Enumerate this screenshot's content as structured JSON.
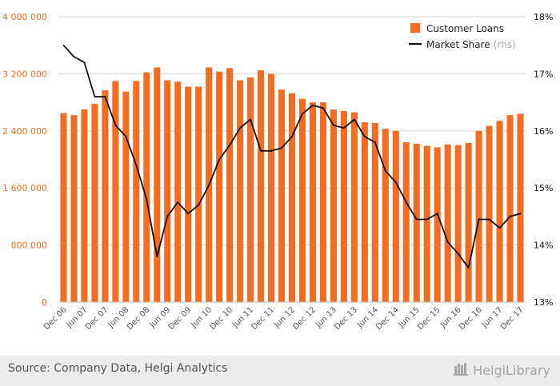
{
  "chart_data": {
    "type": "bar",
    "categories": [
      "Dec 06",
      "Mar 07",
      "Jun 07",
      "Sep 07",
      "Dec 07",
      "Mar 08",
      "Jun 08",
      "Sep 08",
      "Dec 08",
      "Mar 09",
      "Jun 09",
      "Sep 09",
      "Dec 09",
      "Mar 10",
      "Jun 10",
      "Sep 10",
      "Dec 10",
      "Mar 11",
      "Jun 11",
      "Sep 11",
      "Dec 11",
      "Mar 12",
      "Jun 12",
      "Sep 12",
      "Dec 12",
      "Mar 13",
      "Jun 13",
      "Sep 13",
      "Dec 13",
      "Mar 14",
      "Jun 14",
      "Sep 14",
      "Dec 14",
      "Mar 15",
      "Jun 15",
      "Sep 15",
      "Dec 15",
      "Mar 16",
      "Jun 16",
      "Sep 16",
      "Dec 16",
      "Mar 17",
      "Jun 17",
      "Sep 17",
      "Dec 17"
    ],
    "x_tick_labels": [
      "Dec 06",
      "Jun 07",
      "Dec 07",
      "Jun 08",
      "Dec 08",
      "Jun 09",
      "Dec 09",
      "Jun 10",
      "Dec 10",
      "Jun 11",
      "Dec 11",
      "Jun 12",
      "Dec 12",
      "Jun 13",
      "Dec 13",
      "Jun 14",
      "Dec 14",
      "Jun 15",
      "Dec 15",
      "Jun 16",
      "Dec 16",
      "Jun 17",
      "Dec 17"
    ],
    "series": [
      {
        "name": "Customer Loans",
        "type": "bar",
        "axis": "left",
        "color": "#f26d21",
        "values": [
          2650000,
          2620000,
          2700000,
          2780000,
          2970000,
          3100000,
          2950000,
          3100000,
          3220000,
          3290000,
          3110000,
          3090000,
          3020000,
          3020000,
          3290000,
          3230000,
          3280000,
          3110000,
          3150000,
          3250000,
          3200000,
          2980000,
          2930000,
          2850000,
          2800000,
          2800000,
          2700000,
          2680000,
          2660000,
          2520000,
          2510000,
          2430000,
          2400000,
          2240000,
          2220000,
          2190000,
          2170000,
          2210000,
          2200000,
          2230000,
          2400000,
          2470000,
          2540000,
          2620000,
          2640000
        ]
      },
      {
        "name": "Market Share",
        "legend_suffix": "(rhs)",
        "type": "line",
        "axis": "right",
        "color": "#111111",
        "values": [
          17.5,
          17.3,
          17.2,
          16.6,
          16.6,
          16.1,
          15.9,
          15.4,
          14.8,
          13.8,
          14.5,
          14.75,
          14.55,
          14.7,
          15.05,
          15.5,
          15.75,
          16.05,
          16.2,
          15.65,
          15.65,
          15.7,
          15.9,
          16.3,
          16.45,
          16.4,
          16.1,
          16.05,
          16.2,
          15.9,
          15.8,
          15.3,
          15.1,
          14.75,
          14.45,
          14.45,
          14.55,
          14.05,
          13.85,
          13.6,
          14.45,
          14.45,
          14.3,
          14.5,
          14.55
        ]
      }
    ],
    "y_left": {
      "min": 0,
      "max": 4000000,
      "ticks": [
        0,
        800000,
        1600000,
        2400000,
        3200000,
        4000000
      ],
      "tick_labels": [
        "0",
        "800 000",
        "1 600 000",
        "2 400 000",
        "3 200 000",
        "4 000 000"
      ],
      "label_color": "#f26d21"
    },
    "y_right": {
      "min": 13,
      "max": 18,
      "ticks": [
        13,
        14,
        15,
        16,
        17,
        18
      ],
      "tick_labels": [
        "13%",
        "14%",
        "15%",
        "16%",
        "17%",
        "18%"
      ],
      "label_color": "#111111"
    },
    "legend_position": "top-right",
    "grid": true,
    "xlabel": "",
    "ylabel": "",
    "title": ""
  },
  "legend": {
    "customer_loans_label": "Customer Loans",
    "market_share_label": "Market Share",
    "market_share_suffix": "(rhs)"
  },
  "footer": {
    "source": "Source: Company Data, Helgi Analytics",
    "logo_text": "HelgiLibrary"
  },
  "colors": {
    "bar": "#f26d21",
    "line": "#111111",
    "grid": "#d9d9d9",
    "footer_bg": "#ececec"
  }
}
